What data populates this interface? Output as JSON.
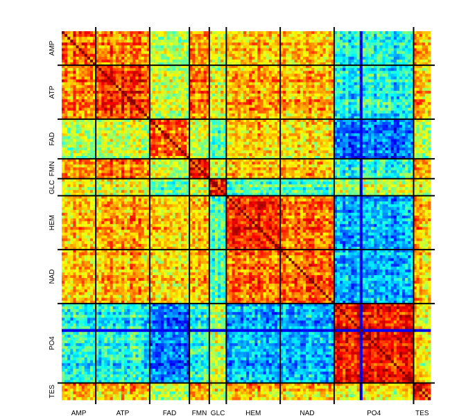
{
  "chart_data": {
    "type": "heatmap",
    "title": "",
    "xlabel": "",
    "ylabel": "",
    "colormap": "jet",
    "colorbar": false,
    "grid_separators": true,
    "groups": [
      {
        "label": "AMP",
        "size": 12
      },
      {
        "label": "ATP",
        "size": 19
      },
      {
        "label": "FAD",
        "size": 14
      },
      {
        "label": "FMN",
        "size": 7
      },
      {
        "label": "GLC",
        "size": 6
      },
      {
        "label": "HEM",
        "size": 19
      },
      {
        "label": "NAD",
        "size": 19
      },
      {
        "label": "PO4",
        "size": 28
      },
      {
        "label": "TES",
        "size": 6
      }
    ],
    "group_mean_similarity": [
      [
        0.8,
        0.75,
        0.55,
        0.72,
        0.62,
        0.7,
        0.7,
        0.4,
        0.72
      ],
      [
        0.75,
        0.82,
        0.55,
        0.74,
        0.6,
        0.72,
        0.7,
        0.38,
        0.7
      ],
      [
        0.55,
        0.55,
        0.75,
        0.55,
        0.45,
        0.66,
        0.64,
        0.22,
        0.55
      ],
      [
        0.72,
        0.74,
        0.55,
        0.82,
        0.55,
        0.68,
        0.68,
        0.38,
        0.7
      ],
      [
        0.62,
        0.6,
        0.45,
        0.55,
        0.85,
        0.45,
        0.45,
        0.55,
        0.6
      ],
      [
        0.7,
        0.72,
        0.66,
        0.68,
        0.45,
        0.85,
        0.78,
        0.3,
        0.7
      ],
      [
        0.7,
        0.7,
        0.64,
        0.68,
        0.45,
        0.78,
        0.8,
        0.3,
        0.68
      ],
      [
        0.4,
        0.38,
        0.22,
        0.38,
        0.55,
        0.3,
        0.3,
        0.85,
        0.62
      ],
      [
        0.72,
        0.7,
        0.55,
        0.7,
        0.6,
        0.7,
        0.68,
        0.62,
        0.85
      ]
    ],
    "diagonal_value": 1.0,
    "low_outlier_item_index": 105,
    "low_outlier_value": 0.08,
    "value_range": [
      0,
      1
    ]
  }
}
